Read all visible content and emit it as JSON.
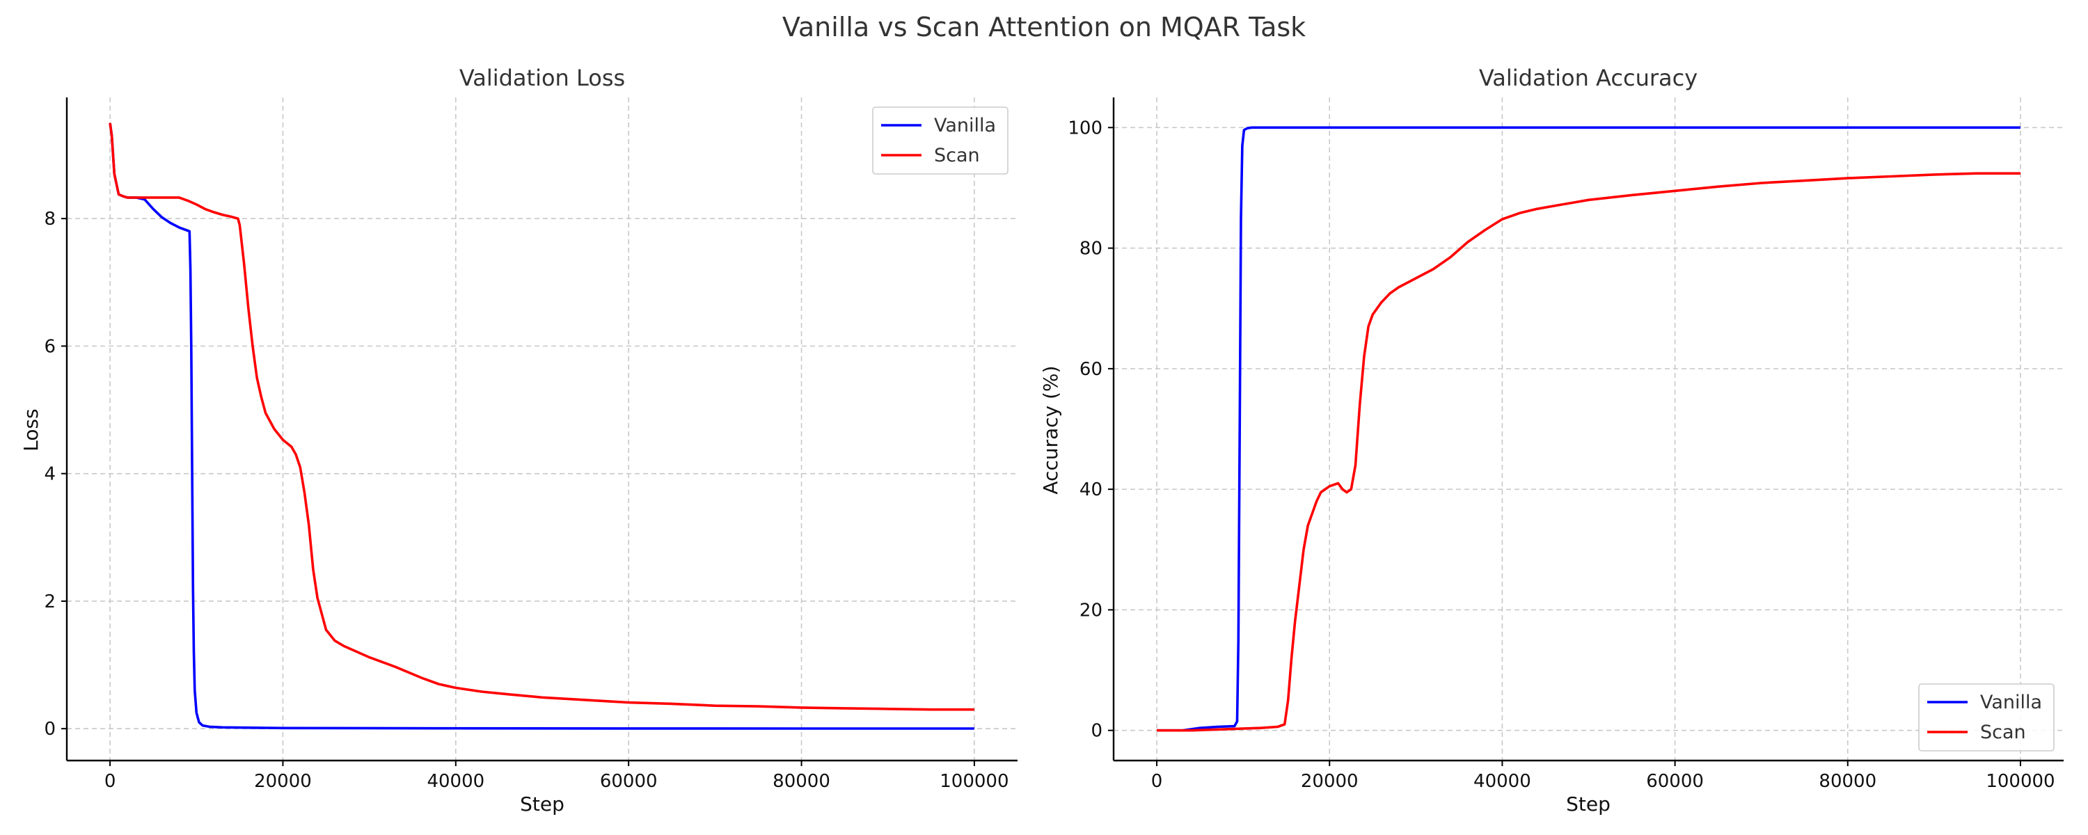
{
  "title": "Vanilla vs Scan Attention on MQAR Task",
  "colors": {
    "Vanilla": "#0000ff",
    "Scan": "#ff0000"
  },
  "chart_data": [
    {
      "type": "line",
      "title": "Validation Loss",
      "xlabel": "Step",
      "ylabel": "Loss",
      "xlim": [
        -5000,
        105000
      ],
      "ylim": [
        -0.5,
        9.9
      ],
      "xticks": [
        0,
        20000,
        40000,
        60000,
        80000,
        100000
      ],
      "yticks": [
        0,
        2,
        4,
        6,
        8
      ],
      "grid": true,
      "legend": "upper right",
      "series": [
        {
          "name": "Vanilla",
          "color": "#0000ff",
          "x": [
            0,
            200,
            500,
            1000,
            1500,
            2000,
            3000,
            4000,
            5000,
            6000,
            7000,
            8000,
            9000,
            9200,
            9300,
            9400,
            9500,
            9600,
            9700,
            9800,
            10000,
            10300,
            10700,
            11500,
            13000,
            20000,
            40000,
            60000,
            80000,
            100000
          ],
          "y": [
            9.5,
            9.3,
            8.7,
            8.38,
            8.35,
            8.33,
            8.33,
            8.3,
            8.15,
            8.02,
            7.93,
            7.86,
            7.81,
            7.8,
            7.2,
            6.0,
            4.0,
            2.2,
            1.2,
            0.6,
            0.25,
            0.1,
            0.05,
            0.03,
            0.02,
            0.01,
            0.005,
            0.003,
            0.002,
            0.002
          ]
        },
        {
          "name": "Scan",
          "color": "#ff0000",
          "x": [
            0,
            200,
            500,
            1000,
            1500,
            2000,
            3000,
            5000,
            7000,
            8000,
            9000,
            10000,
            11000,
            12000,
            13000,
            14000,
            14800,
            15000,
            15500,
            16000,
            16500,
            17000,
            17500,
            18000,
            19000,
            20000,
            21000,
            21500,
            22000,
            22500,
            23000,
            23500,
            24000,
            24500,
            25000,
            26000,
            27000,
            28000,
            30000,
            33000,
            36000,
            38000,
            40000,
            43000,
            46000,
            50000,
            55000,
            60000,
            65000,
            70000,
            75000,
            80000,
            85000,
            90000,
            95000,
            100000
          ],
          "y": [
            9.5,
            9.3,
            8.7,
            8.38,
            8.35,
            8.33,
            8.33,
            8.33,
            8.33,
            8.33,
            8.28,
            8.22,
            8.15,
            8.1,
            8.06,
            8.03,
            8.0,
            7.9,
            7.3,
            6.6,
            6.0,
            5.5,
            5.2,
            4.95,
            4.7,
            4.53,
            4.42,
            4.3,
            4.1,
            3.7,
            3.2,
            2.5,
            2.05,
            1.8,
            1.55,
            1.38,
            1.3,
            1.24,
            1.12,
            0.97,
            0.8,
            0.7,
            0.64,
            0.58,
            0.54,
            0.49,
            0.45,
            0.41,
            0.39,
            0.36,
            0.35,
            0.33,
            0.32,
            0.31,
            0.3,
            0.3
          ]
        }
      ]
    },
    {
      "type": "line",
      "title": "Validation Accuracy",
      "xlabel": "Step",
      "ylabel": "Accuracy (%)",
      "xlim": [
        -5000,
        105000
      ],
      "ylim": [
        -5,
        105
      ],
      "xticks": [
        0,
        20000,
        40000,
        60000,
        80000,
        100000
      ],
      "yticks": [
        0,
        20,
        40,
        60,
        80,
        100
      ],
      "grid": true,
      "legend": "lower right",
      "series": [
        {
          "name": "Vanilla",
          "color": "#0000ff",
          "x": [
            0,
            3000,
            5000,
            7000,
            9000,
            9300,
            9450,
            9600,
            9750,
            9900,
            10100,
            10500,
            11000,
            15000,
            30000,
            60000,
            100000
          ],
          "y": [
            0,
            0,
            0.4,
            0.6,
            0.7,
            1.5,
            15,
            50,
            85,
            97,
            99.6,
            99.9,
            100,
            100,
            100,
            100,
            100
          ]
        },
        {
          "name": "Scan",
          "color": "#ff0000",
          "x": [
            0,
            4000,
            8000,
            12000,
            14000,
            14800,
            15200,
            15600,
            16000,
            16500,
            17000,
            17500,
            18000,
            18500,
            19000,
            20000,
            21000,
            21500,
            22000,
            22500,
            23000,
            23500,
            24000,
            24500,
            25000,
            26000,
            27000,
            28000,
            30000,
            32000,
            34000,
            36000,
            38000,
            40000,
            42000,
            44000,
            46000,
            48000,
            50000,
            55000,
            60000,
            65000,
            70000,
            75000,
            80000,
            85000,
            90000,
            95000,
            100000
          ],
          "y": [
            0,
            0,
            0.2,
            0.4,
            0.6,
            1.0,
            5,
            12,
            18,
            24,
            30,
            34,
            36,
            38,
            39.5,
            40.5,
            41,
            40,
            39.5,
            40,
            44,
            54,
            62,
            67,
            69,
            71,
            72.5,
            73.5,
            75,
            76.5,
            78.5,
            81,
            83,
            84.8,
            85.8,
            86.5,
            87,
            87.5,
            88,
            88.8,
            89.5,
            90.2,
            90.8,
            91.2,
            91.6,
            91.9,
            92.2,
            92.4,
            92.4
          ]
        }
      ]
    }
  ]
}
